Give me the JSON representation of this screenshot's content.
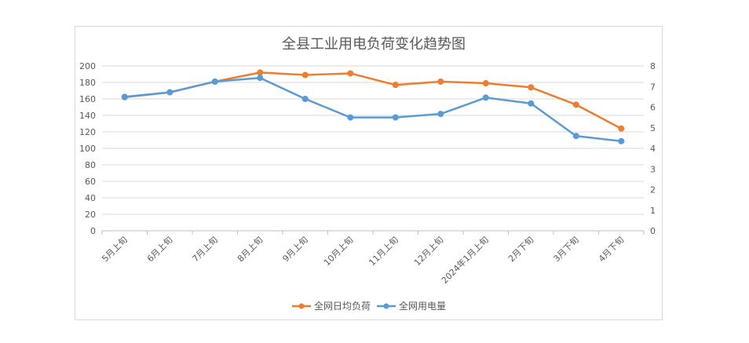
{
  "chart_data": {
    "type": "line",
    "title": "全县工业用电负荷变化趋势图",
    "categories": [
      "5月上旬",
      "6月上旬",
      "7月上旬",
      "8月上旬",
      "9月上旬",
      "10月上旬",
      "11月上旬",
      "12月上旬",
      "2024年1月上旬",
      "2月下旬",
      "3月下旬",
      "4月下旬"
    ],
    "series": [
      {
        "name": "全网日均负荷",
        "axis": "left",
        "color": "#ED7D31",
        "values": [
          162,
          168,
          181,
          192,
          189,
          191,
          177,
          181,
          179,
          174,
          153,
          124
        ]
      },
      {
        "name": "全网用电量",
        "axis": "right",
        "color": "#5B9BD5",
        "values": [
          6.5,
          6.72,
          7.24,
          7.42,
          6.4,
          5.5,
          5.5,
          5.67,
          6.46,
          6.18,
          4.6,
          4.35
        ]
      }
    ],
    "y_left": {
      "min": 0,
      "max": 200,
      "step": 20
    },
    "y_right": {
      "min": 0,
      "max": 8,
      "step": 1
    },
    "grid": true,
    "legend": "bottom"
  }
}
